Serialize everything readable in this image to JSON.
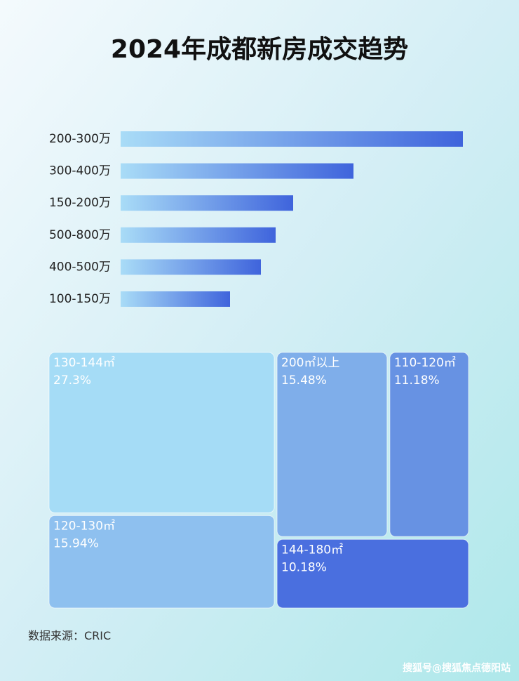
{
  "title": "2024年成都新房成交趋势",
  "chart_data": [
    {
      "type": "bar",
      "orientation": "horizontal",
      "categories": [
        "200-300万",
        "300-400万",
        "150-200万",
        "500-800万",
        "400-500万",
        "100-150万"
      ],
      "values": [
        488,
        332,
        246,
        221,
        200,
        156
      ],
      "color": [
        "#a9dcf7",
        "#3f64dc"
      ]
    },
    {
      "type": "treemap",
      "categories": [
        "130-144㎡",
        "120-130㎡",
        "200㎡以上",
        "110-120㎡",
        "144-180㎡"
      ],
      "values": [
        27.3,
        15.94,
        15.48,
        11.18,
        10.18
      ],
      "value_labels": [
        "27.3%",
        "15.94%",
        "15.48%",
        "11.18%",
        "10.18%"
      ],
      "colors": [
        "#a5dcf6",
        "#8ec0ef",
        "#7faeea",
        "#6792e3",
        "#4a6fdf"
      ]
    }
  ],
  "source": "数据来源：CRIC",
  "watermark": "搜狐号@搜狐焦点德阳站"
}
